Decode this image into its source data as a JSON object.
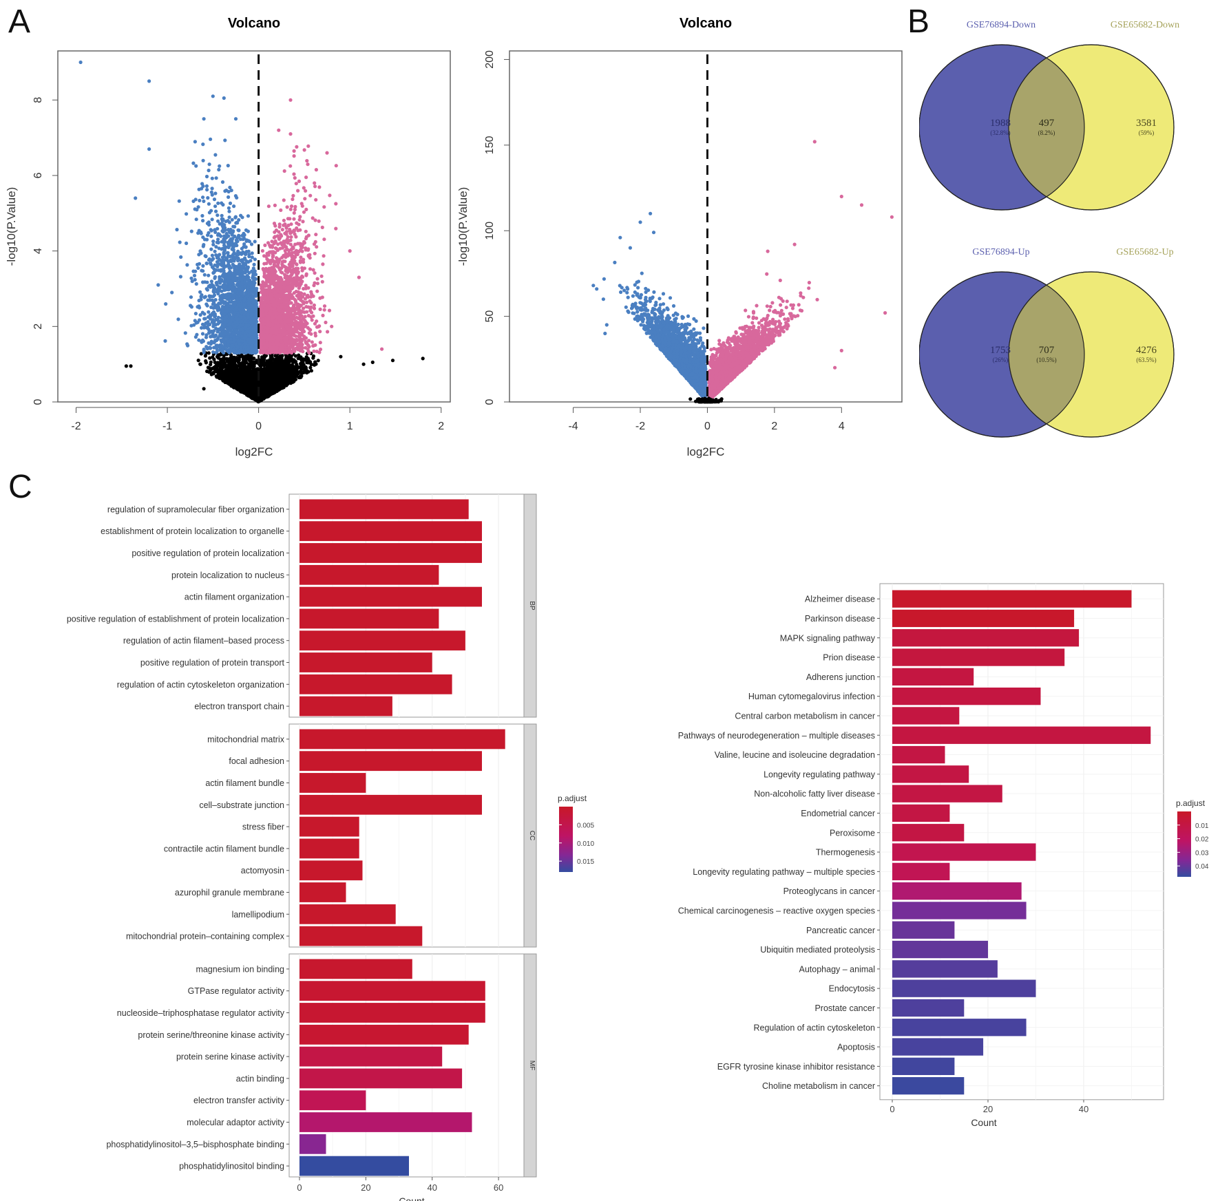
{
  "panels": {
    "a": "A",
    "b": "B",
    "c": "C"
  },
  "chart_data": [
    {
      "type": "scatter",
      "id": "volcano1",
      "title": "Volcano",
      "xlabel": "log2FC",
      "ylabel": "-log10(P.Value)",
      "xlim": [
        -2.2,
        2.1
      ],
      "ylim": [
        0,
        9.3
      ],
      "xticks": [
        -2,
        -1,
        0,
        1,
        2
      ],
      "yticks": [
        0,
        2,
        4,
        6,
        8
      ],
      "threshold_line_x": 0,
      "significance_y": 1.3,
      "colors": {
        "down": "#4a7fc1",
        "up": "#d8689c",
        "ns": "#000000"
      },
      "highlight_points": {
        "down": [
          [
            -1.95,
            9.0
          ],
          [
            -1.2,
            8.5
          ],
          [
            -0.5,
            8.1
          ],
          [
            -0.38,
            8.05
          ],
          [
            -1.2,
            6.7
          ],
          [
            -0.6,
            7.5
          ],
          [
            -0.25,
            7.5
          ],
          [
            -1.35,
            5.4
          ],
          [
            -0.95,
            2.9
          ],
          [
            -1.1,
            3.1
          ]
        ],
        "up": [
          [
            0.35,
            8.0
          ],
          [
            0.22,
            7.2
          ],
          [
            0.35,
            7.1
          ],
          [
            0.75,
            6.6
          ],
          [
            1.0,
            4.0
          ],
          [
            1.1,
            3.3
          ],
          [
            0.8,
            2.0
          ],
          [
            1.35,
            1.4
          ]
        ],
        "ns": [
          [
            -1.45,
            0.95
          ],
          [
            -1.4,
            0.95
          ],
          [
            1.8,
            1.15
          ],
          [
            1.47,
            1.1
          ],
          [
            1.25,
            1.05
          ],
          [
            1.15,
            1.0
          ],
          [
            0.9,
            1.2
          ],
          [
            -0.6,
            0.35
          ]
        ]
      },
      "distribution": {
        "down_n": 2400,
        "up_n": 2400,
        "ns_n": 3000
      }
    },
    {
      "type": "scatter",
      "id": "volcano2",
      "title": "Volcano",
      "xlabel": "log2FC",
      "ylabel": "-log10(P.Value)",
      "xlim": [
        -5.9,
        5.8
      ],
      "ylim": [
        0,
        205
      ],
      "xticks": [
        -4,
        -2,
        0,
        2,
        4
      ],
      "yticks": [
        0,
        50,
        100,
        150,
        200
      ],
      "threshold_line_x": 0,
      "colors": {
        "down": "#4a7fc1",
        "up": "#d8689c",
        "ns": "#000000"
      },
      "highlight_points": {
        "down": [
          [
            -3.4,
            68
          ],
          [
            -3.3,
            66
          ],
          [
            -3.1,
            60
          ],
          [
            -1.7,
            110
          ],
          [
            -2.0,
            105
          ],
          [
            -2.6,
            96
          ],
          [
            -2.3,
            90
          ],
          [
            -1.6,
            99
          ],
          [
            -3.0,
            45
          ],
          [
            -3.05,
            40
          ]
        ],
        "up": [
          [
            3.2,
            152
          ],
          [
            4.0,
            120
          ],
          [
            4.6,
            115
          ],
          [
            5.5,
            108
          ],
          [
            2.6,
            92
          ],
          [
            1.8,
            88
          ],
          [
            5.3,
            52
          ],
          [
            4.0,
            30
          ],
          [
            3.8,
            20
          ]
        ],
        "ns": []
      },
      "distribution": {
        "down_n": 2200,
        "up_n": 2200,
        "ns_n": 150
      }
    },
    {
      "type": "venn",
      "id": "venn-down",
      "sets": [
        "GSE76894-Down",
        "GSE65682-Down"
      ],
      "regions": [
        {
          "name": "GSE76894-Down only",
          "count": 1988,
          "percent": "(32.8%)"
        },
        {
          "name": "intersection",
          "count": 497,
          "percent": "(8.2%)"
        },
        {
          "name": "GSE65682-Down only",
          "count": 3581,
          "percent": "(59%)"
        }
      ],
      "colors": {
        "left": "#5b5fae",
        "right": "#eeea78",
        "overlap": "#a8a46a"
      }
    },
    {
      "type": "venn",
      "id": "venn-up",
      "sets": [
        "GSE76894-Up",
        "GSE65682-Up"
      ],
      "regions": [
        {
          "name": "GSE76894-Up only",
          "count": 1753,
          "percent": "(26%)"
        },
        {
          "name": "intersection",
          "count": 707,
          "percent": "(10.5%)"
        },
        {
          "name": "GSE65682-Up only",
          "count": 4276,
          "percent": "(63.5%)"
        }
      ],
      "colors": {
        "left": "#5b5fae",
        "right": "#eeea78",
        "overlap": "#a8a46a"
      }
    },
    {
      "type": "bar",
      "id": "go-enrichment",
      "orientation": "horizontal",
      "xlabel": "Count",
      "xlim": [
        0,
        66
      ],
      "xticks": [
        0,
        20,
        40,
        60
      ],
      "legend": {
        "title": "p.adjust",
        "ticks": [
          "0.005",
          "0.010",
          "0.015"
        ],
        "range": [
          0.0,
          0.018
        ],
        "position": "right"
      },
      "facets": [
        {
          "name": "BP",
          "items": [
            {
              "label": "regulation of supramolecular fiber organization",
              "count": 51,
              "padj": 0.0005
            },
            {
              "label": "establishment of protein localization to organelle",
              "count": 55,
              "padj": 0.0005
            },
            {
              "label": "positive regulation of protein localization",
              "count": 55,
              "padj": 0.0005
            },
            {
              "label": "protein localization to nucleus",
              "count": 42,
              "padj": 0.0005
            },
            {
              "label": "actin filament organization",
              "count": 55,
              "padj": 0.0005
            },
            {
              "label": "positive regulation of establishment of protein localization",
              "count": 42,
              "padj": 0.0005
            },
            {
              "label": "regulation of actin filament-based process",
              "count": 50,
              "padj": 0.0005
            },
            {
              "label": "positive regulation of protein transport",
              "count": 40,
              "padj": 0.0005
            },
            {
              "label": "regulation of actin cytoskeleton organization",
              "count": 46,
              "padj": 0.0005
            },
            {
              "label": "electron transport chain",
              "count": 28,
              "padj": 0.0005
            }
          ]
        },
        {
          "name": "CC",
          "items": [
            {
              "label": "mitochondrial matrix",
              "count": 62,
              "padj": 0.0005
            },
            {
              "label": "focal adhesion",
              "count": 55,
              "padj": 0.0005
            },
            {
              "label": "actin filament bundle",
              "count": 20,
              "padj": 0.0005
            },
            {
              "label": "cell-substrate junction",
              "count": 55,
              "padj": 0.0005
            },
            {
              "label": "stress fiber",
              "count": 18,
              "padj": 0.0005
            },
            {
              "label": "contractile actin filament bundle",
              "count": 18,
              "padj": 0.0005
            },
            {
              "label": "actomyosin",
              "count": 19,
              "padj": 0.0005
            },
            {
              "label": "azurophil granule membrane",
              "count": 14,
              "padj": 0.0005
            },
            {
              "label": "lamellipodium",
              "count": 29,
              "padj": 0.0005
            },
            {
              "label": "mitochondrial protein-containing complex",
              "count": 37,
              "padj": 0.0005
            }
          ]
        },
        {
          "name": "MF",
          "items": [
            {
              "label": "magnesium ion binding",
              "count": 34,
              "padj": 0.0008
            },
            {
              "label": "GTPase regulator activity",
              "count": 56,
              "padj": 0.0012
            },
            {
              "label": "nucleoside-triphosphatase regulator activity",
              "count": 56,
              "padj": 0.0012
            },
            {
              "label": "protein serine/threonine kinase activity",
              "count": 51,
              "padj": 0.0012
            },
            {
              "label": "protein serine kinase activity",
              "count": 43,
              "padj": 0.004
            },
            {
              "label": "actin binding",
              "count": 49,
              "padj": 0.0045
            },
            {
              "label": "electron transfer activity",
              "count": 20,
              "padj": 0.006
            },
            {
              "label": "molecular adaptor activity",
              "count": 52,
              "padj": 0.009
            },
            {
              "label": "phosphatidylinositol-3,5-bisphosphate binding",
              "count": 8,
              "padj": 0.013
            },
            {
              "label": "phosphatidylinositol binding",
              "count": 33,
              "padj": 0.018
            }
          ]
        }
      ]
    },
    {
      "type": "bar",
      "id": "kegg-enrichment",
      "orientation": "horizontal",
      "xlabel": "Count",
      "xlim": [
        0,
        57
      ],
      "xticks": [
        0,
        20,
        40
      ],
      "legend": {
        "title": "p.adjust",
        "ticks": [
          "0.01",
          "0.02",
          "0.03",
          "0.04"
        ],
        "range": [
          0.0,
          0.048
        ],
        "position": "right"
      },
      "items": [
        {
          "label": "Alzheimer disease",
          "count": 50,
          "padj": 0.001
        },
        {
          "label": "Parkinson disease",
          "count": 38,
          "padj": 0.001
        },
        {
          "label": "MAPK signaling pathway",
          "count": 39,
          "padj": 0.008
        },
        {
          "label": "Prion disease",
          "count": 36,
          "padj": 0.008
        },
        {
          "label": "Adherens junction",
          "count": 17,
          "padj": 0.009
        },
        {
          "label": "Human cytomegalovirus infection",
          "count": 31,
          "padj": 0.009
        },
        {
          "label": "Central carbon metabolism in cancer",
          "count": 14,
          "padj": 0.009
        },
        {
          "label": "Pathways of neurodegeneration - multiple diseases",
          "count": 54,
          "padj": 0.009
        },
        {
          "label": "Valine, leucine and isoleucine degradation",
          "count": 11,
          "padj": 0.01
        },
        {
          "label": "Longevity regulating pathway",
          "count": 16,
          "padj": 0.01
        },
        {
          "label": "Non-alcoholic fatty liver disease",
          "count": 23,
          "padj": 0.01
        },
        {
          "label": "Endometrial cancer",
          "count": 12,
          "padj": 0.01
        },
        {
          "label": "Peroxisome",
          "count": 15,
          "padj": 0.01
        },
        {
          "label": "Thermogenesis",
          "count": 30,
          "padj": 0.014
        },
        {
          "label": "Longevity regulating pathway - multiple species",
          "count": 12,
          "padj": 0.016
        },
        {
          "label": "Proteoglycans in cancer",
          "count": 27,
          "padj": 0.025
        },
        {
          "label": "Chemical carcinogenesis - reactive oxygen species",
          "count": 28,
          "padj": 0.038
        },
        {
          "label": "Pancreatic cancer",
          "count": 13,
          "padj": 0.04
        },
        {
          "label": "Ubiquitin mediated proteolysis",
          "count": 20,
          "padj": 0.041
        },
        {
          "label": "Autophagy - animal",
          "count": 22,
          "padj": 0.043
        },
        {
          "label": "Endocytosis",
          "count": 30,
          "padj": 0.044
        },
        {
          "label": "Prostate cancer",
          "count": 15,
          "padj": 0.044
        },
        {
          "label": "Regulation of actin cytoskeleton",
          "count": 28,
          "padj": 0.045
        },
        {
          "label": "Apoptosis",
          "count": 19,
          "padj": 0.045
        },
        {
          "label": "EGFR tyrosine kinase inhibitor resistance",
          "count": 13,
          "padj": 0.046
        },
        {
          "label": "Choline metabolism in cancer",
          "count": 15,
          "padj": 0.047
        }
      ]
    }
  ]
}
